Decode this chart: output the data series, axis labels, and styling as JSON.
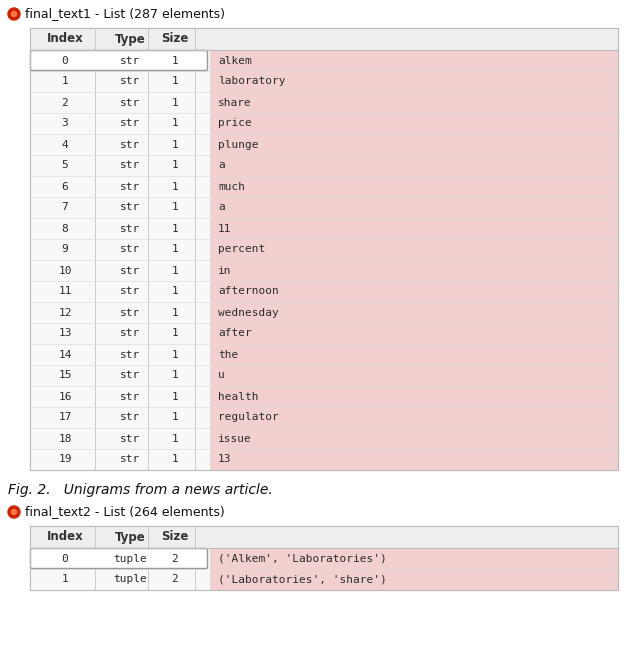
{
  "fig_width": 6.4,
  "fig_height": 6.61,
  "bg_color": "#ffffff",
  "title1": "final_text1 - List (287 elements)",
  "title2": "final_text2 - List (264 elements)",
  "caption": "Fig. 2.   Unigrams from a news article.",
  "table1_headers": [
    "Index",
    "Type",
    "Size"
  ],
  "table1_rows": [
    [
      "0",
      "str",
      "1",
      "alkem"
    ],
    [
      "1",
      "str",
      "1",
      "laboratory"
    ],
    [
      "2",
      "str",
      "1",
      "share"
    ],
    [
      "3",
      "str",
      "1",
      "price"
    ],
    [
      "4",
      "str",
      "1",
      "plunge"
    ],
    [
      "5",
      "str",
      "1",
      "a"
    ],
    [
      "6",
      "str",
      "1",
      "much"
    ],
    [
      "7",
      "str",
      "1",
      "a"
    ],
    [
      "8",
      "str",
      "1",
      "11"
    ],
    [
      "9",
      "str",
      "1",
      "percent"
    ],
    [
      "10",
      "str",
      "1",
      "in"
    ],
    [
      "11",
      "str",
      "1",
      "afternoon"
    ],
    [
      "12",
      "str",
      "1",
      "wednesday"
    ],
    [
      "13",
      "str",
      "1",
      "after"
    ],
    [
      "14",
      "str",
      "1",
      "the"
    ],
    [
      "15",
      "str",
      "1",
      "u"
    ],
    [
      "16",
      "str",
      "1",
      "health"
    ],
    [
      "17",
      "str",
      "1",
      "regulator"
    ],
    [
      "18",
      "str",
      "1",
      "issue"
    ],
    [
      "19",
      "str",
      "1",
      "13"
    ]
  ],
  "table2_headers": [
    "Index",
    "Type",
    "Size"
  ],
  "table2_rows": [
    [
      "0",
      "tuple",
      "2",
      "('Alkem', 'Laboratories')"
    ],
    [
      "1",
      "tuple",
      "2",
      "('Laboratories', 'share')"
    ]
  ],
  "table_bg_pink": "#f2d0d0",
  "table_bg_white": "#f8f8f8",
  "table_border_color": "#bbbbbb",
  "header_bg": "#eeeeee",
  "text_color": "#2c2c2c",
  "mono_font": "DejaVu Sans Mono",
  "icon_color": "#cc2200",
  "selected_border_color": "#999999"
}
